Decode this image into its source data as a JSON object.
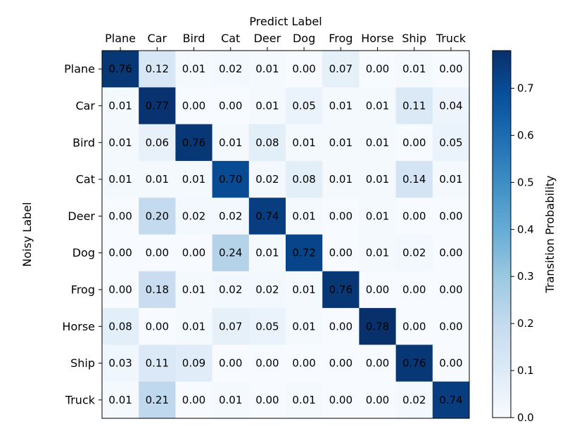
{
  "chart_data": {
    "type": "heatmap",
    "xlabel": "Predict Label",
    "ylabel": "Noisy Label",
    "colorbar_label": "Transition Probability",
    "x_categories": [
      "Plane",
      "Car",
      "Bird",
      "Cat",
      "Deer",
      "Dog",
      "Frog",
      "Horse",
      "Ship",
      "Truck"
    ],
    "y_categories": [
      "Plane",
      "Car",
      "Bird",
      "Cat",
      "Deer",
      "Dog",
      "Frog",
      "Horse",
      "Ship",
      "Truck"
    ],
    "values": [
      [
        0.76,
        0.12,
        0.01,
        0.02,
        0.01,
        0.0,
        0.07,
        0.0,
        0.01,
        0.0
      ],
      [
        0.01,
        0.77,
        0.0,
        0.0,
        0.01,
        0.05,
        0.01,
        0.01,
        0.11,
        0.04
      ],
      [
        0.01,
        0.06,
        0.76,
        0.01,
        0.08,
        0.01,
        0.01,
        0.01,
        0.0,
        0.05
      ],
      [
        0.01,
        0.01,
        0.01,
        0.7,
        0.02,
        0.08,
        0.01,
        0.01,
        0.14,
        0.01
      ],
      [
        0.0,
        0.2,
        0.02,
        0.02,
        0.74,
        0.01,
        0.0,
        0.01,
        0.0,
        0.0
      ],
      [
        0.0,
        0.0,
        0.0,
        0.24,
        0.01,
        0.72,
        0.0,
        0.01,
        0.02,
        0.0
      ],
      [
        0.0,
        0.18,
        0.01,
        0.02,
        0.02,
        0.01,
        0.76,
        0.0,
        0.0,
        0.0
      ],
      [
        0.08,
        0.0,
        0.01,
        0.07,
        0.05,
        0.01,
        0.0,
        0.78,
        0.0,
        0.0
      ],
      [
        0.03,
        0.11,
        0.09,
        0.0,
        0.0,
        0.0,
        0.0,
        0.0,
        0.76,
        0.0
      ],
      [
        0.01,
        0.21,
        0.0,
        0.01,
        0.0,
        0.01,
        0.0,
        0.0,
        0.02,
        0.74
      ]
    ],
    "value_format": "2 decimals",
    "colormap": "Blues",
    "color_range": [
      0.0,
      0.78
    ],
    "colorbar_ticks": [
      "0.0",
      "0.1",
      "0.2",
      "0.3",
      "0.4",
      "0.5",
      "0.6",
      "0.7"
    ],
    "x_tick_position": "top",
    "grid": false
  }
}
